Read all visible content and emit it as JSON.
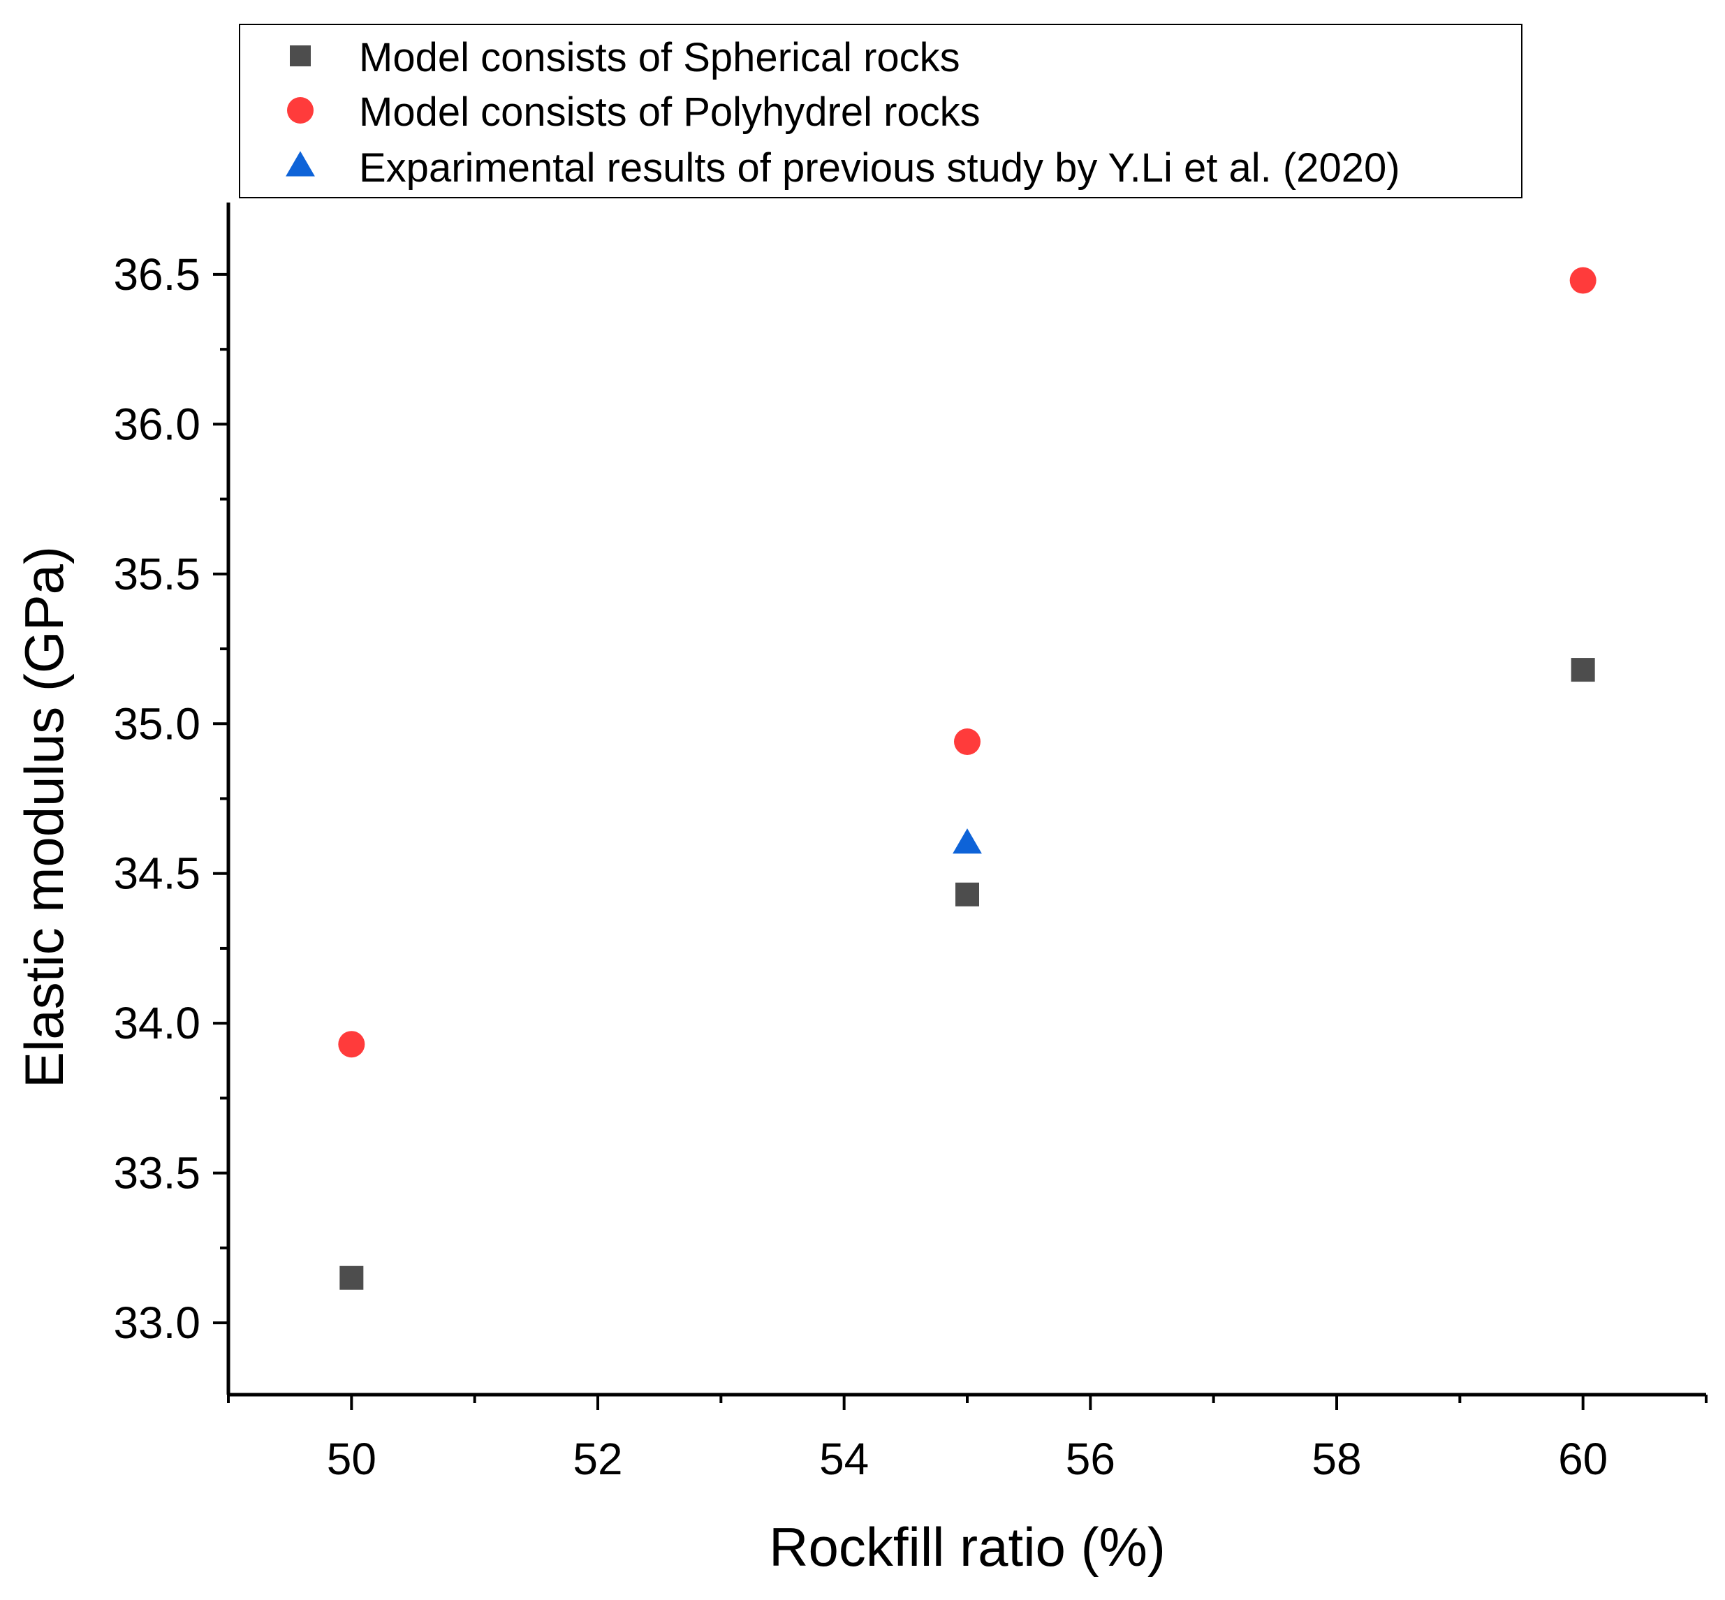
{
  "chart_data": {
    "type": "scatter",
    "title": "",
    "xlabel": "Rockfill ratio (%)",
    "ylabel": "Elastic modulus (GPa)",
    "xlim": [
      49,
      61
    ],
    "ylim": [
      32.76,
      36.74
    ],
    "x_ticks": [
      50,
      52,
      54,
      56,
      58,
      60
    ],
    "x_tick_labels": [
      "50",
      "52",
      "54",
      "56",
      "58",
      "60"
    ],
    "y_ticks": [
      33.0,
      33.5,
      34.0,
      34.5,
      35.0,
      35.5,
      36.0,
      36.5
    ],
    "y_tick_labels": [
      "33.0",
      "33.5",
      "34.0",
      "34.5",
      "35.0",
      "35.5",
      "36.0",
      "36.5"
    ],
    "grid": false,
    "legend_position": "top",
    "series": [
      {
        "name": "Model consists of Spherical rocks",
        "marker": "square",
        "color": "#4d4d4d",
        "x": [
          50,
          55,
          60
        ],
        "y": [
          33.15,
          34.43,
          35.18
        ]
      },
      {
        "name": "Model consists of Polyhydrel rocks",
        "marker": "circle",
        "color": "#ff3b3b",
        "x": [
          50,
          55,
          60
        ],
        "y": [
          33.93,
          34.94,
          36.48
        ]
      },
      {
        "name": "Exparimental results of previous study by Y.Li et al. (2020)",
        "marker": "triangle",
        "color": "#0e63d8",
        "x": [
          55
        ],
        "y": [
          34.6
        ]
      }
    ]
  }
}
